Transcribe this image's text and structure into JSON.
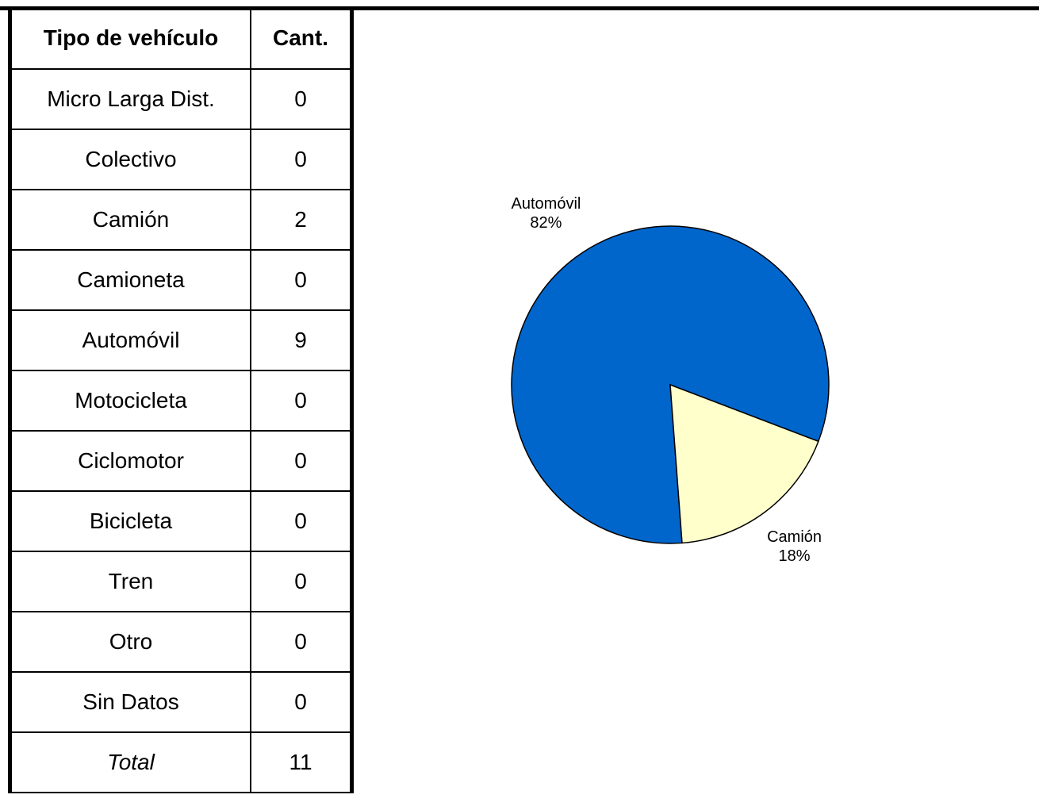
{
  "table": {
    "header": [
      "Tipo de vehículo",
      "Cant."
    ],
    "rows": [
      [
        "Micro Larga Dist.",
        0
      ],
      [
        "Colectivo",
        0
      ],
      [
        "Camión",
        2
      ],
      [
        "Camioneta",
        0
      ],
      [
        "Automóvil",
        9
      ],
      [
        "Motocicleta",
        0
      ],
      [
        "Ciclomotor",
        0
      ],
      [
        "Bicicleta",
        0
      ],
      [
        "Tren",
        0
      ],
      [
        "Otro",
        0
      ],
      [
        "Sin Datos",
        0
      ]
    ],
    "total": [
      "Total",
      11
    ]
  },
  "chart_data": {
    "type": "pie",
    "categories": [
      "Automóvil",
      "Camión"
    ],
    "values": [
      82,
      18
    ],
    "value_labels": [
      "82%",
      "18%"
    ],
    "colors": [
      "#0066cc",
      "#ffffcc"
    ]
  }
}
